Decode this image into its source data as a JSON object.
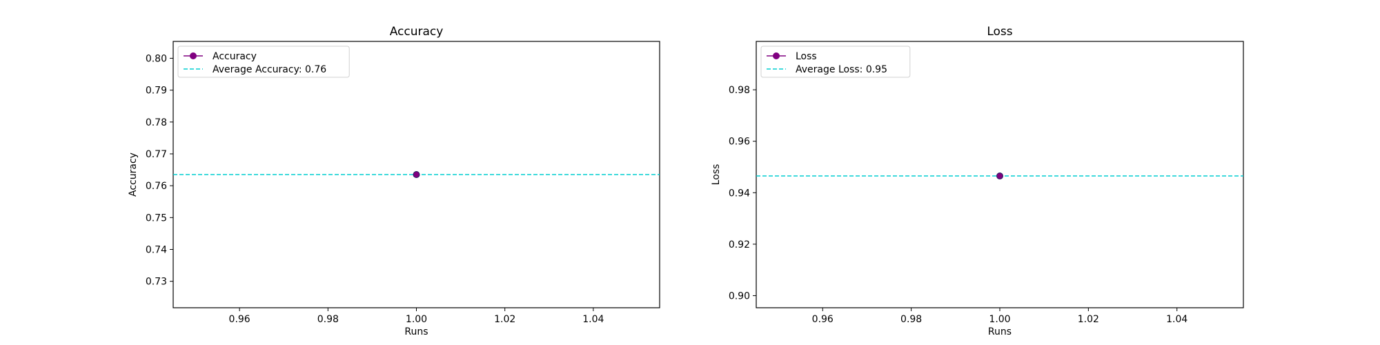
{
  "chart_data": [
    {
      "type": "line",
      "title": "Accuracy",
      "xlabel": "Runs",
      "ylabel": "Accuracy",
      "xlim": [
        0.945,
        1.055
      ],
      "ylim": [
        0.7217,
        0.8053
      ],
      "xticks": [
        0.96,
        0.98,
        1.0,
        1.02,
        1.04
      ],
      "xtick_labels": [
        "0.96",
        "0.98",
        "1.00",
        "1.02",
        "1.04"
      ],
      "yticks": [
        0.73,
        0.74,
        0.75,
        0.76,
        0.77,
        0.78,
        0.79,
        0.8
      ],
      "ytick_labels": [
        "0.73",
        "0.74",
        "0.75",
        "0.76",
        "0.77",
        "0.78",
        "0.79",
        "0.80"
      ],
      "grid": false,
      "legend_position": "upper-left",
      "series": [
        {
          "name": "Accuracy",
          "x": [
            1.0
          ],
          "y": [
            0.7635
          ],
          "color": "#800080",
          "marker": "circle"
        }
      ],
      "hlines": [
        {
          "name": "Average Accuracy: 0.76",
          "y": 0.7635,
          "color": "#00CED1",
          "style": "dashed"
        }
      ]
    },
    {
      "type": "line",
      "title": "Loss",
      "xlabel": "Runs",
      "ylabel": "Loss",
      "xlim": [
        0.945,
        1.055
      ],
      "ylim": [
        0.8953,
        0.9988
      ],
      "xticks": [
        0.96,
        0.98,
        1.0,
        1.02,
        1.04
      ],
      "xtick_labels": [
        "0.96",
        "0.98",
        "1.00",
        "1.02",
        "1.04"
      ],
      "yticks": [
        0.9,
        0.92,
        0.94,
        0.96,
        0.98
      ],
      "ytick_labels": [
        "0.90",
        "0.92",
        "0.94",
        "0.96",
        "0.98"
      ],
      "grid": false,
      "legend_position": "upper-left",
      "series": [
        {
          "name": "Loss",
          "x": [
            1.0
          ],
          "y": [
            0.9465
          ],
          "color": "#800080",
          "marker": "circle"
        }
      ],
      "hlines": [
        {
          "name": "Average Loss: 0.95",
          "y": 0.9465,
          "color": "#00CED1",
          "style": "dashed"
        }
      ]
    }
  ]
}
